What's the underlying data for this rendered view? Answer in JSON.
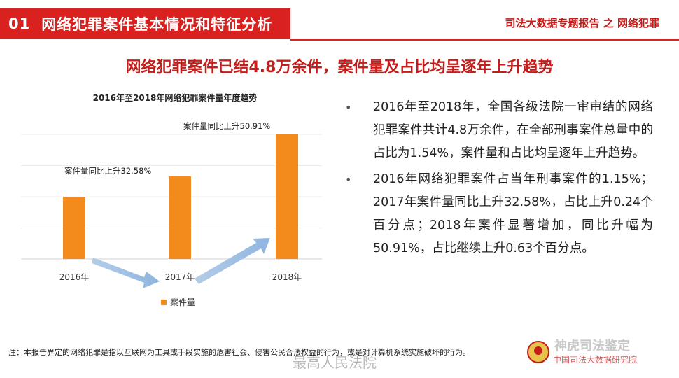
{
  "header": {
    "section_num": "01",
    "section_title": "网络犯罪案件基本情况和特征分析",
    "report_tag": "司法大数据专题报告 之 网络犯罪"
  },
  "headline": "网络犯罪案件已结4.8万余件，案件量及占比均呈逐年上升趋势",
  "chart_data": {
    "type": "bar",
    "title": "2016年至2018年网络犯罪案件量年度趋势",
    "categories": [
      "2016年",
      "2017年",
      "2018年"
    ],
    "series": [
      {
        "name": "案件量",
        "values": [
          1.0,
          1.3258,
          2.0008
        ]
      }
    ],
    "color": "#f28a1c",
    "annotations": [
      "案件量同比上升32.58%",
      "案件量同比上升50.91%"
    ],
    "grid": true,
    "legend_position": "bottom-left"
  },
  "bullets": [
    "2016年至2018年，全国各级法院一审审结的网络犯罪案件共计4.8万余件，在全部刑事案件总量中的占比为1.54%，案件量和占比均呈逐年上升趋势。",
    "2016年网络犯罪案件占当年刑事案件的1.15%； 2017年案件量同比上升32.58%，占比上升0.24个百分点；2018年案件显著增加，同比升幅为50.91%，占比继续上升0.63个百分点。"
  ],
  "footnote": "注：本报告界定的网络犯罪是指以互联网为工具或手段实施的危害社会、侵害公民合法权益的行为，或是对计算机系统实施破坏的行为。",
  "watermarks": {
    "weibo": "最高人民法院",
    "wechat": "神虎司法鉴定",
    "institute": "中国司法大数据研究院"
  }
}
